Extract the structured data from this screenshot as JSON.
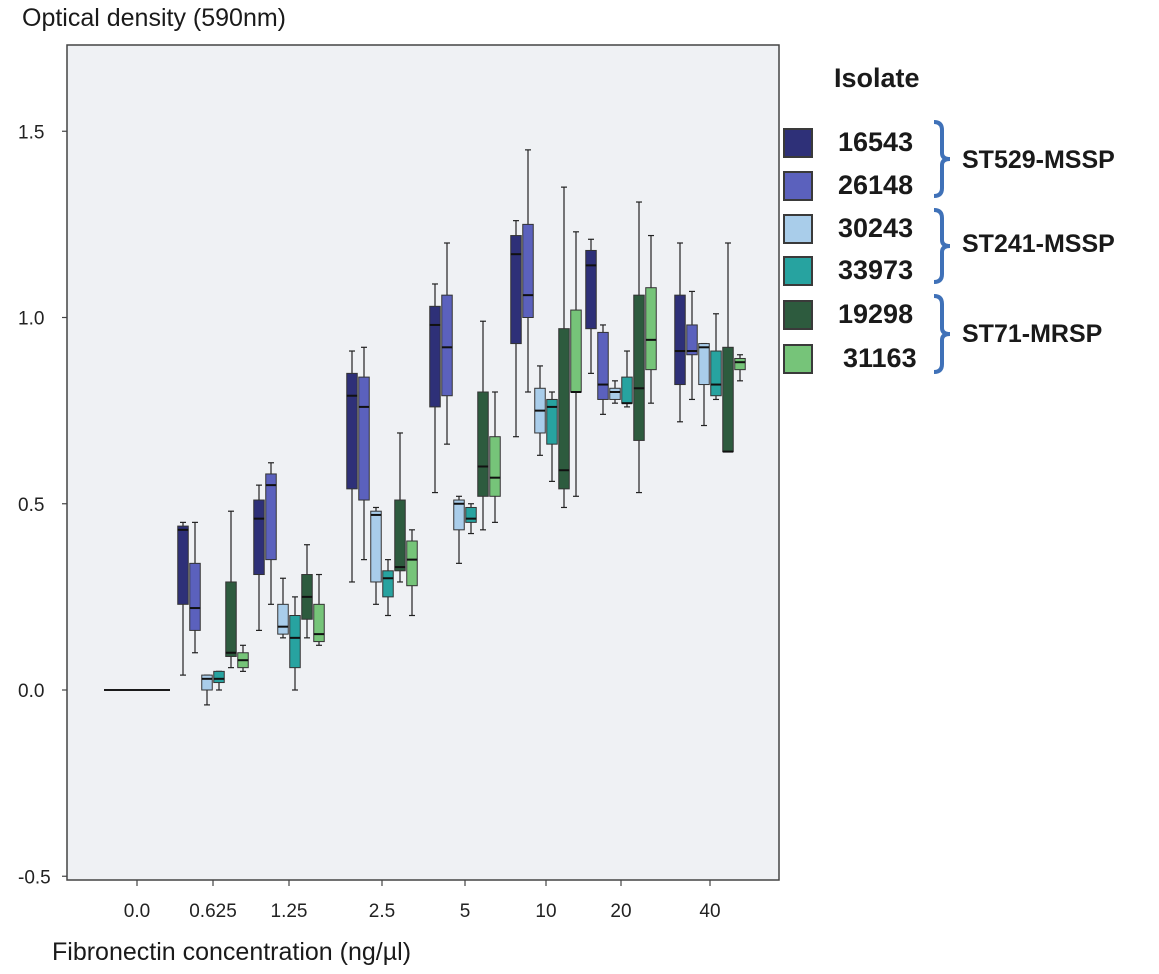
{
  "chart_data": {
    "type": "box",
    "ylabel": "Optical density (590nm)",
    "xlabel": "Fibronectin concentration (ng/µl)",
    "ylim": [
      -0.5,
      1.75
    ],
    "yticks": [
      1.5,
      1.0,
      0.5,
      0.0,
      -0.5
    ],
    "ytick_labels": [
      "1.5",
      "1.0",
      "0.5",
      "0.0",
      "-0.5"
    ],
    "categories": [
      "0.0",
      "0.625",
      "1.25",
      "2.5",
      "5",
      "10",
      "20",
      "40"
    ],
    "legend_title": "Isolate",
    "legend_placement": "right",
    "series": [
      {
        "name": "16543",
        "color": "#2e3078",
        "boxes": [
          {
            "cat": "0.0",
            "min": 0,
            "q1": 0,
            "median": 0,
            "q3": 0,
            "max": 0
          },
          {
            "cat": "0.625",
            "min": 0.04,
            "q1": 0.23,
            "median": 0.43,
            "q3": 0.44,
            "max": 0.45
          },
          {
            "cat": "1.25",
            "min": 0.16,
            "q1": 0.31,
            "median": 0.46,
            "q3": 0.51,
            "max": 0.55
          },
          {
            "cat": "2.5",
            "min": 0.29,
            "q1": 0.54,
            "median": 0.79,
            "q3": 0.85,
            "max": 0.91
          },
          {
            "cat": "5",
            "min": 0.53,
            "q1": 0.76,
            "median": 0.98,
            "q3": 1.03,
            "max": 1.09
          },
          {
            "cat": "10",
            "min": 0.68,
            "q1": 0.93,
            "median": 1.17,
            "q3": 1.22,
            "max": 1.26
          },
          {
            "cat": "20",
            "min": 0.85,
            "q1": 0.97,
            "median": 1.14,
            "q3": 1.18,
            "max": 1.21
          },
          {
            "cat": "40",
            "min": 0.72,
            "q1": 0.82,
            "median": 0.91,
            "q3": 1.06,
            "max": 1.2
          }
        ]
      },
      {
        "name": "26148",
        "color": "#5b61bd",
        "boxes": [
          {
            "cat": "0.0",
            "min": 0,
            "q1": 0,
            "median": 0,
            "q3": 0,
            "max": 0
          },
          {
            "cat": "0.625",
            "min": 0.1,
            "q1": 0.16,
            "median": 0.22,
            "q3": 0.34,
            "max": 0.45
          },
          {
            "cat": "1.25",
            "min": 0.23,
            "q1": 0.35,
            "median": 0.55,
            "q3": 0.58,
            "max": 0.61
          },
          {
            "cat": "2.5",
            "min": 0.35,
            "q1": 0.51,
            "median": 0.76,
            "q3": 0.84,
            "max": 0.92
          },
          {
            "cat": "5",
            "min": 0.66,
            "q1": 0.79,
            "median": 0.92,
            "q3": 1.06,
            "max": 1.2
          },
          {
            "cat": "10",
            "min": 0.8,
            "q1": 1.0,
            "median": 1.06,
            "q3": 1.25,
            "max": 1.45
          },
          {
            "cat": "20",
            "min": 0.74,
            "q1": 0.78,
            "median": 0.82,
            "q3": 0.96,
            "max": 0.98
          },
          {
            "cat": "40",
            "min": 0.78,
            "q1": 0.9,
            "median": 0.91,
            "q3": 0.98,
            "max": 1.07
          }
        ]
      },
      {
        "name": "30243",
        "color": "#a9cdea",
        "boxes": [
          {
            "cat": "0.625",
            "min": -0.04,
            "q1": 0.0,
            "median": 0.03,
            "q3": 0.04,
            "max": 0.04
          },
          {
            "cat": "1.25",
            "min": 0.14,
            "q1": 0.15,
            "median": 0.17,
            "q3": 0.23,
            "max": 0.3
          },
          {
            "cat": "2.5",
            "min": 0.23,
            "q1": 0.29,
            "median": 0.47,
            "q3": 0.48,
            "max": 0.49
          },
          {
            "cat": "5",
            "min": 0.34,
            "q1": 0.43,
            "median": 0.5,
            "q3": 0.51,
            "max": 0.52
          },
          {
            "cat": "10",
            "min": 0.63,
            "q1": 0.69,
            "median": 0.75,
            "q3": 0.81,
            "max": 0.87
          },
          {
            "cat": "20",
            "min": 0.77,
            "q1": 0.78,
            "median": 0.8,
            "q3": 0.81,
            "max": 0.83
          },
          {
            "cat": "40",
            "min": 0.71,
            "q1": 0.82,
            "median": 0.92,
            "q3": 0.93,
            "max": 0.93
          }
        ]
      },
      {
        "name": "33973",
        "color": "#27a3a0",
        "boxes": [
          {
            "cat": "0.625",
            "min": 0.0,
            "q1": 0.02,
            "median": 0.03,
            "q3": 0.05,
            "max": 0.05
          },
          {
            "cat": "1.25",
            "min": 0.0,
            "q1": 0.06,
            "median": 0.14,
            "q3": 0.2,
            "max": 0.25
          },
          {
            "cat": "2.5",
            "min": 0.2,
            "q1": 0.25,
            "median": 0.3,
            "q3": 0.32,
            "max": 0.35
          },
          {
            "cat": "5",
            "min": 0.42,
            "q1": 0.45,
            "median": 0.46,
            "q3": 0.49,
            "max": 0.5
          },
          {
            "cat": "10",
            "min": 0.56,
            "q1": 0.66,
            "median": 0.76,
            "q3": 0.78,
            "max": 0.8
          },
          {
            "cat": "20",
            "min": 0.76,
            "q1": 0.77,
            "median": 0.77,
            "q3": 0.84,
            "max": 0.91
          },
          {
            "cat": "40",
            "min": 0.78,
            "q1": 0.79,
            "median": 0.82,
            "q3": 0.91,
            "max": 1.01
          }
        ]
      },
      {
        "name": "19298",
        "color": "#2d5b3e",
        "boxes": [
          {
            "cat": "0.625",
            "min": 0.06,
            "q1": 0.09,
            "median": 0.1,
            "q3": 0.29,
            "max": 0.48
          },
          {
            "cat": "1.25",
            "min": 0.14,
            "q1": 0.19,
            "median": 0.25,
            "q3": 0.31,
            "max": 0.39
          },
          {
            "cat": "2.5",
            "min": 0.29,
            "q1": 0.32,
            "median": 0.33,
            "q3": 0.51,
            "max": 0.69
          },
          {
            "cat": "5",
            "min": 0.43,
            "q1": 0.52,
            "median": 0.6,
            "q3": 0.8,
            "max": 0.99
          },
          {
            "cat": "10",
            "min": 0.49,
            "q1": 0.54,
            "median": 0.59,
            "q3": 0.97,
            "max": 1.35
          },
          {
            "cat": "20",
            "min": 0.53,
            "q1": 0.67,
            "median": 0.81,
            "q3": 1.06,
            "max": 1.31
          },
          {
            "cat": "40",
            "min": 0.64,
            "q1": 0.64,
            "median": 0.64,
            "q3": 0.92,
            "max": 1.2
          }
        ]
      },
      {
        "name": "31163",
        "color": "#76c479",
        "boxes": [
          {
            "cat": "0.625",
            "min": 0.05,
            "q1": 0.06,
            "median": 0.08,
            "q3": 0.1,
            "max": 0.12
          },
          {
            "cat": "1.25",
            "min": 0.12,
            "q1": 0.13,
            "median": 0.15,
            "q3": 0.23,
            "max": 0.31
          },
          {
            "cat": "2.5",
            "min": 0.2,
            "q1": 0.28,
            "median": 0.35,
            "q3": 0.4,
            "max": 0.43
          },
          {
            "cat": "5",
            "min": 0.45,
            "q1": 0.52,
            "median": 0.57,
            "q3": 0.68,
            "max": 0.8
          },
          {
            "cat": "10",
            "min": 0.52,
            "q1": 0.8,
            "median": 0.8,
            "q3": 1.02,
            "max": 1.23
          },
          {
            "cat": "20",
            "min": 0.77,
            "q1": 0.86,
            "median": 0.94,
            "q3": 1.08,
            "max": 1.22
          },
          {
            "cat": "40",
            "min": 0.83,
            "q1": 0.86,
            "median": 0.88,
            "q3": 0.89,
            "max": 0.9
          }
        ]
      }
    ],
    "groups": [
      {
        "label": "ST529-MSSP",
        "members": [
          "16543",
          "26148"
        ]
      },
      {
        "label": "ST241-MSSP",
        "members": [
          "30243",
          "33973"
        ]
      },
      {
        "label": "ST71-MRSP",
        "members": [
          "19298",
          "31163"
        ]
      }
    ],
    "bracket_color": "#3f71b8",
    "plot_background": "#eff1f4"
  }
}
